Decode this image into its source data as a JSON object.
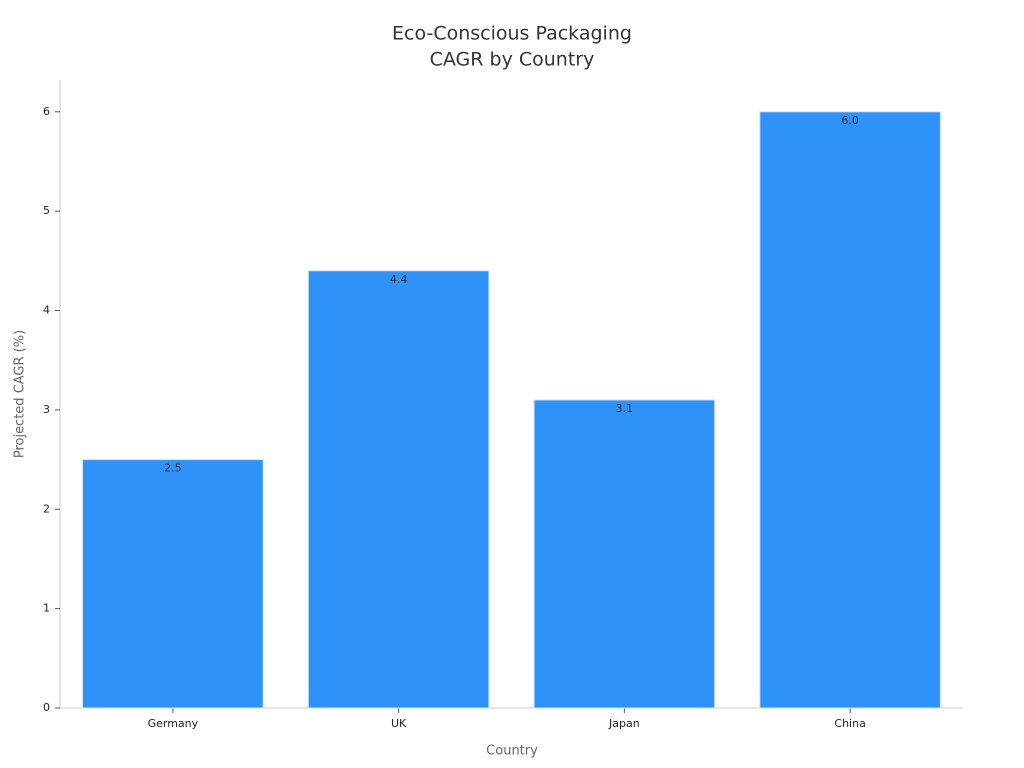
{
  "chart_data": {
    "type": "bar",
    "title": [
      "Eco-Conscious Packaging",
      "CAGR by Country"
    ],
    "x_label": "Country",
    "y_label": "Projected CAGR (%)",
    "categories": [
      "Germany",
      "UK",
      "Japan",
      "China"
    ],
    "values": [
      2.5,
      4.4,
      3.1,
      6
    ],
    "value_labels": [
      "2.5",
      "4.4",
      "3.1",
      "6.0"
    ],
    "color": "#2f92f9",
    "ylim": [
      0,
      6.32
    ],
    "yticks": [
      0,
      1,
      2,
      3,
      4,
      5,
      6
    ],
    "grid": false
  }
}
